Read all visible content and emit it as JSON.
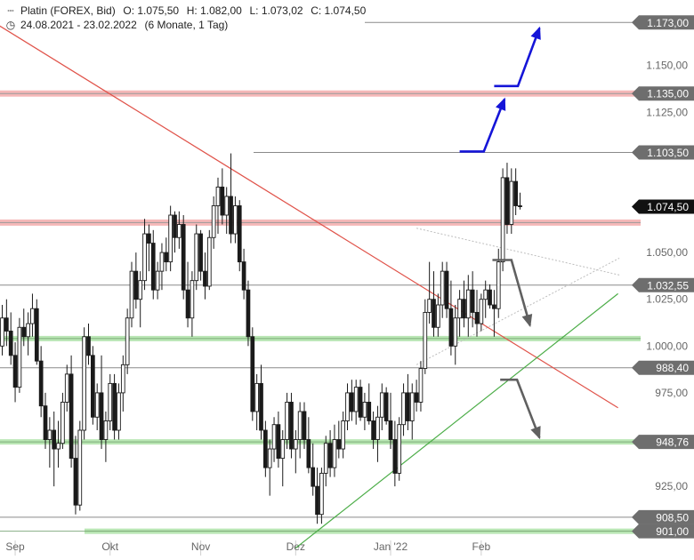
{
  "header": {
    "instrument": "Platin (FOREX, Bid)",
    "open": "O: 1.075,50",
    "high": "H: 1.082,00",
    "low": "L: 1.073,02",
    "close": "C: 1.074,50",
    "range": "24.08.2021 - 23.02.2022",
    "period": "(6 Monate, 1 Tag)",
    "chart_icon": "candlestick-icon",
    "time_icon": "clock-icon"
  },
  "colors": {
    "candle": "#1a1a1a",
    "resistance_band": "#f5b8b8",
    "support_band": "#b9e6b4",
    "downtrend": "#e0534a",
    "uptrend": "#4cad48",
    "projection_up": "#1515d8",
    "projection_down": "#606060",
    "marker_bg": "#6e6e6e",
    "current_bg": "#111111"
  },
  "chart_data": {
    "type": "candlestick",
    "title": "Platin (FOREX, Bid)",
    "subtitle": "24.08.2021 - 23.02.2022 (6 Monate, 1 Tag)",
    "ylim": [
      888,
      1185
    ],
    "y_ticks": [
      {
        "value": 925,
        "label": "925,00"
      },
      {
        "value": 975,
        "label": "975,00"
      },
      {
        "value": 1000,
        "label": "1.000,00"
      },
      {
        "value": 1025,
        "label": "1.025,00"
      },
      {
        "value": 1050,
        "label": "1.050,00"
      },
      {
        "value": 1125,
        "label": "1.125,00"
      },
      {
        "value": 1150,
        "label": "1.150,00"
      }
    ],
    "x_ticks": [
      {
        "index": 3,
        "label": "Sep"
      },
      {
        "index": 25,
        "label": "Okt"
      },
      {
        "index": 46,
        "label": "Nov"
      },
      {
        "index": 68,
        "label": "Dez"
      },
      {
        "index": 90,
        "label": "Jan '22"
      },
      {
        "index": 111,
        "label": "Feb"
      }
    ],
    "candles": [
      [
        1000,
        1022,
        995,
        1015
      ],
      [
        1015,
        1025,
        1000,
        1008
      ],
      [
        1008,
        1018,
        990,
        995
      ],
      [
        995,
        1002,
        970,
        978
      ],
      [
        978,
        1015,
        975,
        1010
      ],
      [
        1010,
        1020,
        1000,
        1005
      ],
      [
        1005,
        1018,
        995,
        1012
      ],
      [
        1012,
        1028,
        1005,
        1020
      ],
      [
        1020,
        1025,
        990,
        992
      ],
      [
        992,
        1000,
        962,
        968
      ],
      [
        968,
        975,
        945,
        950
      ],
      [
        950,
        962,
        935,
        955
      ],
      [
        955,
        965,
        925,
        945
      ],
      [
        945,
        960,
        935,
        948
      ],
      [
        948,
        975,
        945,
        970
      ],
      [
        970,
        990,
        965,
        985
      ],
      [
        985,
        995,
        935,
        940
      ],
      [
        940,
        952,
        910,
        915
      ],
      [
        915,
        960,
        912,
        955
      ],
      [
        955,
        1010,
        950,
        1005
      ],
      [
        1005,
        1012,
        990,
        995
      ],
      [
        995,
        1000,
        958,
        962
      ],
      [
        962,
        980,
        955,
        975
      ],
      [
        975,
        995,
        945,
        950
      ],
      [
        950,
        965,
        938,
        960
      ],
      [
        960,
        985,
        955,
        980
      ],
      [
        980,
        985,
        950,
        955
      ],
      [
        955,
        980,
        950,
        975
      ],
      [
        975,
        995,
        965,
        990
      ],
      [
        990,
        1020,
        985,
        1015
      ],
      [
        1015,
        1045,
        1010,
        1040
      ],
      [
        1040,
        1050,
        1020,
        1025
      ],
      [
        1025,
        1040,
        1010,
        1035
      ],
      [
        1035,
        1068,
        1030,
        1060
      ],
      [
        1060,
        1065,
        1040,
        1055
      ],
      [
        1055,
        1062,
        1025,
        1030
      ],
      [
        1030,
        1045,
        1025,
        1040
      ],
      [
        1040,
        1055,
        1030,
        1050
      ],
      [
        1050,
        1058,
        1040,
        1045
      ],
      [
        1045,
        1075,
        1040,
        1070
      ],
      [
        1070,
        1072,
        1050,
        1058
      ],
      [
        1058,
        1072,
        1052,
        1065
      ],
      [
        1065,
        1070,
        1025,
        1030
      ],
      [
        1030,
        1045,
        1010,
        1015
      ],
      [
        1015,
        1040,
        1005,
        1035
      ],
      [
        1035,
        1065,
        1030,
        1060
      ],
      [
        1060,
        1062,
        1035,
        1040
      ],
      [
        1040,
        1050,
        1025,
        1032
      ],
      [
        1032,
        1062,
        1030,
        1058
      ],
      [
        1058,
        1080,
        1052,
        1075
      ],
      [
        1075,
        1090,
        1060,
        1085
      ],
      [
        1085,
        1095,
        1065,
        1070
      ],
      [
        1070,
        1085,
        1060,
        1080
      ],
      [
        1080,
        1103,
        1055,
        1060
      ],
      [
        1060,
        1080,
        1055,
        1075
      ],
      [
        1075,
        1078,
        1040,
        1045
      ],
      [
        1045,
        1052,
        1025,
        1030
      ],
      [
        1030,
        1035,
        1000,
        1005
      ],
      [
        1005,
        1010,
        960,
        965
      ],
      [
        965,
        985,
        955,
        980
      ],
      [
        980,
        990,
        950,
        955
      ],
      [
        955,
        960,
        930,
        935
      ],
      [
        935,
        950,
        920,
        945
      ],
      [
        945,
        962,
        938,
        958
      ],
      [
        958,
        965,
        935,
        940
      ],
      [
        940,
        955,
        925,
        950
      ],
      [
        950,
        975,
        945,
        970
      ],
      [
        970,
        975,
        940,
        945
      ],
      [
        945,
        955,
        932,
        950
      ],
      [
        950,
        970,
        940,
        965
      ],
      [
        965,
        970,
        945,
        950
      ],
      [
        950,
        962,
        932,
        935
      ],
      [
        935,
        948,
        920,
        925
      ],
      [
        925,
        935,
        905,
        910
      ],
      [
        910,
        935,
        905,
        932
      ],
      [
        932,
        952,
        925,
        948
      ],
      [
        948,
        955,
        930,
        935
      ],
      [
        935,
        958,
        930,
        950
      ],
      [
        950,
        960,
        940,
        945
      ],
      [
        945,
        965,
        940,
        960
      ],
      [
        960,
        980,
        955,
        975
      ],
      [
        975,
        982,
        960,
        965
      ],
      [
        965,
        982,
        958,
        978
      ],
      [
        978,
        982,
        960,
        962
      ],
      [
        962,
        975,
        955,
        970
      ],
      [
        970,
        980,
        958,
        960
      ],
      [
        960,
        965,
        945,
        950
      ],
      [
        950,
        968,
        938,
        962
      ],
      [
        962,
        980,
        955,
        975
      ],
      [
        975,
        978,
        958,
        960
      ],
      [
        960,
        975,
        945,
        950
      ],
      [
        950,
        960,
        925,
        932
      ],
      [
        932,
        962,
        928,
        958
      ],
      [
        958,
        980,
        952,
        975
      ],
      [
        975,
        985,
        955,
        960
      ],
      [
        960,
        980,
        950,
        975
      ],
      [
        975,
        982,
        965,
        970
      ],
      [
        970,
        992,
        965,
        988
      ],
      [
        988,
        1025,
        985,
        1018
      ],
      [
        1018,
        1045,
        1012,
        1025
      ],
      [
        1025,
        1040,
        1005,
        1010
      ],
      [
        1010,
        1028,
        1005,
        1022
      ],
      [
        1022,
        1045,
        1015,
        1040
      ],
      [
        1040,
        1045,
        1015,
        1020
      ],
      [
        1020,
        1035,
        995,
        1000
      ],
      [
        1000,
        1022,
        990,
        1015
      ],
      [
        1015,
        1030,
        1005,
        1025
      ],
      [
        1025,
        1035,
        1010,
        1015
      ],
      [
        1015,
        1038,
        1005,
        1030
      ],
      [
        1030,
        1040,
        1010,
        1018
      ],
      [
        1018,
        1030,
        1005,
        1012
      ],
      [
        1012,
        1028,
        1008,
        1025
      ],
      [
        1025,
        1035,
        1015,
        1030
      ],
      [
        1030,
        1033,
        1020,
        1022
      ],
      [
        1022,
        1030,
        1005,
        1020
      ],
      [
        1020,
        1052,
        1015,
        1045
      ],
      [
        1045,
        1095,
        1040,
        1090
      ],
      [
        1090,
        1098,
        1060,
        1065
      ],
      [
        1065,
        1095,
        1060,
        1088
      ],
      [
        1088,
        1095,
        1070,
        1075
      ],
      [
        1075,
        1082,
        1073,
        1074.5
      ]
    ],
    "horizontal_lines": [
      {
        "value": 1173,
        "label": "1.173,00",
        "style": "thin"
      },
      {
        "value": 1135,
        "label": "1.135,00",
        "style": "resistance-band"
      },
      {
        "value": 1103.5,
        "label": "1.103,50",
        "style": "thin"
      },
      {
        "value": 1066,
        "label": "",
        "style": "resistance-band"
      },
      {
        "value": 1032.55,
        "label": "1.032,55",
        "style": "thin"
      },
      {
        "value": 1004,
        "label": "",
        "style": "support-band"
      },
      {
        "value": 988.4,
        "label": "988,40",
        "style": "thin"
      },
      {
        "value": 948.76,
        "label": "948,76",
        "style": "support-band"
      },
      {
        "value": 908.5,
        "label": "908,50",
        "style": "thin"
      },
      {
        "value": 901,
        "label": "901,00",
        "style": "support-band"
      }
    ],
    "current_price": {
      "value": 1074.5,
      "label": "1.074,50"
    },
    "trendlines": [
      {
        "name": "downtrend",
        "from": [
          -6.8,
          1180
        ],
        "to": [
          142.7,
          967
        ]
      },
      {
        "name": "uptrend",
        "from": [
          68,
          892
        ],
        "to": [
          142.7,
          1028
        ]
      }
    ],
    "channel_lines": [
      {
        "from": [
          96,
          1063
        ],
        "to": [
          143,
          1038
        ]
      },
      {
        "from": [
          96,
          990
        ],
        "to": [
          143,
          1047
        ]
      }
    ],
    "projections_up": [
      [
        [
          106,
          1104
        ],
        [
          111.6,
          1104
        ],
        [
          116.4,
          1132
        ]
      ],
      [
        [
          114,
          1139
        ],
        [
          119.5,
          1139
        ],
        [
          124.5,
          1170
        ]
      ]
    ],
    "projections_down": [
      [
        [
          113.6,
          1046
        ],
        [
          118,
          1046
        ],
        [
          122.3,
          1011
        ]
      ],
      [
        [
          115.4,
          982
        ],
        [
          119.3,
          982
        ],
        [
          124.5,
          951
        ]
      ]
    ]
  }
}
